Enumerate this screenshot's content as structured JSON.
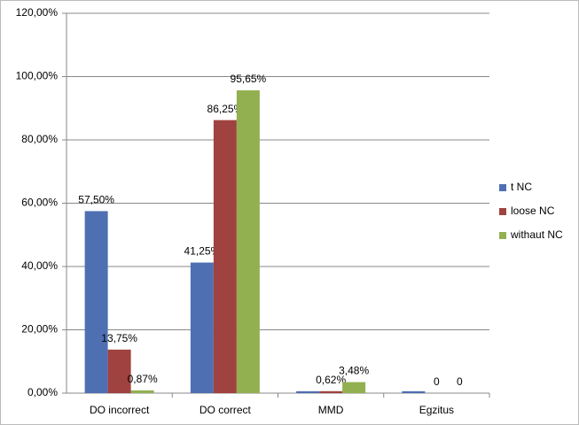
{
  "chart_data": {
    "type": "bar",
    "categories": [
      "DO incorrect",
      "DO correct",
      "MMD",
      "Egzitus"
    ],
    "series": [
      {
        "name": "t NC",
        "color": "#4f6fb3",
        "values": [
          57.5,
          41.25,
          0.6,
          0.6
        ],
        "value_labels": [
          "57,50%",
          "41,25%",
          null,
          null
        ]
      },
      {
        "name": "loose NC",
        "color": "#a0423f",
        "values": [
          13.75,
          86.25,
          0.62,
          0
        ],
        "value_labels": [
          "13,75%",
          "86,25%",
          "0,62%",
          "0"
        ]
      },
      {
        "name": "withaut NC",
        "color": "#92b050",
        "values": [
          0.87,
          95.65,
          3.48,
          0
        ],
        "value_labels": [
          "0,87%",
          "95,65%",
          "3,48%",
          "0"
        ]
      }
    ],
    "ylim": [
      0,
      120
    ],
    "yticks": [
      {
        "value": 0,
        "label": "0,00%"
      },
      {
        "value": 20,
        "label": "20,00%"
      },
      {
        "value": 40,
        "label": "40,00%"
      },
      {
        "value": 60,
        "label": "60,00%"
      },
      {
        "value": 80,
        "label": "80,00%"
      },
      {
        "value": 100,
        "label": "100,00%"
      },
      {
        "value": 120,
        "label": "120,00%"
      }
    ],
    "grid": true,
    "legend": "right"
  }
}
